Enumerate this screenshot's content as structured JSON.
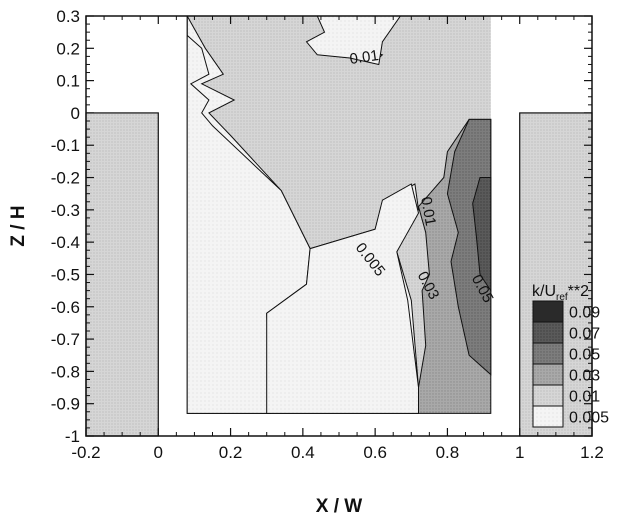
{
  "chart_data": {
    "type": "contour",
    "xlabel": "X / W",
    "ylabel": "Z / H",
    "xlim": [
      -0.2,
      1.2
    ],
    "ylim": [
      -1,
      0.3
    ],
    "x_ticks": [
      "-0.2",
      "0",
      "0.2",
      "0.4",
      "0.6",
      "0.8",
      "1",
      "1.2"
    ],
    "x_tick_values": [
      -0.2,
      0,
      0.2,
      0.4,
      0.6,
      0.8,
      1,
      1.2
    ],
    "y_ticks": [
      "0.3",
      "0.2",
      "0.1",
      "0",
      "-0.1",
      "-0.2",
      "-0.3",
      "-0.4",
      "-0.5",
      "-0.6",
      "-0.7",
      "-0.8",
      "-0.9",
      "-1"
    ],
    "y_tick_values": [
      0.3,
      0.2,
      0.1,
      0,
      -0.1,
      -0.2,
      -0.3,
      -0.4,
      -0.5,
      -0.6,
      -0.7,
      -0.8,
      -0.9,
      -1
    ],
    "legend": {
      "title_main": "k/U",
      "title_sub": "ref",
      "title_tail": "**2",
      "placement": "lower-right",
      "levels": [
        {
          "label": "0.09",
          "color": "#2a2a2a"
        },
        {
          "label": "0.07",
          "color": "#555555"
        },
        {
          "label": "0.05",
          "color": "#7d7d7d"
        },
        {
          "label": "0.03",
          "color": "#a8a8a8"
        },
        {
          "label": "0.01",
          "color": "#d2d2d2"
        },
        {
          "label": "0.005",
          "color": "#ececec"
        }
      ]
    },
    "contour_labels": [
      {
        "text": "0.01",
        "x": 0.57,
        "y": 0.17,
        "angle": -8
      },
      {
        "text": "0.01",
        "x": 0.745,
        "y": -0.305,
        "angle": 80
      },
      {
        "text": "0.005",
        "x": 0.585,
        "y": -0.455,
        "angle": 52
      },
      {
        "text": "0.03",
        "x": 0.745,
        "y": -0.535,
        "angle": 62
      },
      {
        "text": "0.05",
        "x": 0.895,
        "y": -0.545,
        "angle": 62
      }
    ],
    "walls": [
      {
        "x0": -0.2,
        "x1": 0.0,
        "y0": -1.0,
        "y1": 0.0,
        "level": "0.01"
      },
      {
        "x0": 1.0,
        "x1": 1.2,
        "y0": -1.0,
        "y1": 0.0,
        "level": "0.01"
      }
    ],
    "regions": [
      {
        "level": "0.01",
        "points": [
          [
            0.08,
            -0.93
          ],
          [
            0.92,
            -0.93
          ],
          [
            0.92,
            0.3
          ],
          [
            0.08,
            0.3
          ]
        ]
      },
      {
        "level": "0.005",
        "points": [
          [
            0.08,
            0.3
          ],
          [
            0.08,
            -0.93
          ],
          [
            0.3,
            -0.93
          ],
          [
            0.31,
            -0.6
          ],
          [
            0.42,
            -0.53
          ],
          [
            0.42,
            -0.42
          ],
          [
            0.6,
            -0.36
          ],
          [
            0.62,
            -0.28
          ],
          [
            0.71,
            -0.22
          ],
          [
            0.72,
            -0.3
          ],
          [
            0.66,
            -0.43
          ],
          [
            0.7,
            -0.58
          ],
          [
            0.72,
            -0.85
          ],
          [
            0.72,
            -0.93
          ],
          [
            0.3,
            -0.93
          ],
          [
            0.31,
            -0.6
          ],
          [
            0.55,
            -0.93
          ],
          [
            0.69,
            -0.93
          ],
          [
            0.69,
            -0.6
          ],
          [
            0.72,
            -0.85
          ],
          [
            0.69,
            -0.93
          ],
          [
            0.55,
            -0.93
          ],
          [
            0.42,
            -0.53
          ],
          [
            0.42,
            -0.42
          ],
          [
            0.34,
            -0.24
          ],
          [
            0.2,
            -0.07
          ],
          [
            0.14,
            0.0
          ],
          [
            0.21,
            0.04
          ],
          [
            0.12,
            0.09
          ],
          [
            0.18,
            0.12
          ],
          [
            0.13,
            0.2
          ],
          [
            0.08,
            0.3
          ]
        ]
      },
      {
        "level": "0.005",
        "points": [
          [
            0.08,
            0.3
          ],
          [
            0.08,
            -0.93
          ],
          [
            0.31,
            -0.93
          ],
          [
            0.3,
            -0.62
          ],
          [
            0.41,
            -0.53
          ],
          [
            0.42,
            -0.42
          ],
          [
            0.34,
            -0.24
          ],
          [
            0.15,
            -0.04
          ],
          [
            0.12,
            0.0
          ],
          [
            0.14,
            0.04
          ],
          [
            0.09,
            0.09
          ],
          [
            0.14,
            0.12
          ],
          [
            0.12,
            0.2
          ],
          [
            0.08,
            0.24
          ]
        ]
      },
      {
        "level": "0.005",
        "points": [
          [
            0.3,
            -0.93
          ],
          [
            0.72,
            -0.93
          ],
          [
            0.72,
            -0.85
          ],
          [
            0.69,
            -0.58
          ],
          [
            0.66,
            -0.43
          ],
          [
            0.72,
            -0.31
          ],
          [
            0.7,
            -0.22
          ],
          [
            0.62,
            -0.27
          ],
          [
            0.6,
            -0.36
          ],
          [
            0.42,
            -0.42
          ],
          [
            0.41,
            -0.53
          ],
          [
            0.3,
            -0.62
          ]
        ]
      },
      {
        "level": "0.005",
        "points": [
          [
            0.47,
            0.3
          ],
          [
            0.55,
            0.3
          ],
          [
            0.54,
            0.28
          ],
          [
            0.56,
            0.2
          ],
          [
            0.62,
            0.18
          ],
          [
            0.6,
            0.16
          ],
          [
            0.45,
            0.19
          ],
          [
            0.42,
            0.21
          ],
          [
            0.49,
            0.24
          ],
          [
            0.47,
            0.3
          ]
        ]
      },
      {
        "level": "0.005",
        "points": [
          [
            0.44,
            0.3
          ],
          [
            0.46,
            0.25
          ],
          [
            0.41,
            0.22
          ],
          [
            0.44,
            0.18
          ],
          [
            0.53,
            0.17
          ],
          [
            0.61,
            0.15
          ],
          [
            0.62,
            0.22
          ],
          [
            0.67,
            0.3
          ]
        ]
      },
      {
        "level": "0.03",
        "points": [
          [
            0.72,
            -0.93
          ],
          [
            0.92,
            -0.93
          ],
          [
            0.92,
            -0.02
          ],
          [
            0.86,
            -0.02
          ],
          [
            0.8,
            -0.12
          ],
          [
            0.79,
            -0.2
          ],
          [
            0.72,
            -0.29
          ],
          [
            0.74,
            -0.37
          ],
          [
            0.75,
            -0.5
          ],
          [
            0.73,
            -0.55
          ],
          [
            0.74,
            -0.72
          ],
          [
            0.72,
            -0.85
          ]
        ]
      },
      {
        "level": "0.05",
        "points": [
          [
            0.92,
            -0.02
          ],
          [
            0.92,
            -0.81
          ],
          [
            0.86,
            -0.75
          ],
          [
            0.83,
            -0.6
          ],
          [
            0.81,
            -0.46
          ],
          [
            0.83,
            -0.37
          ],
          [
            0.8,
            -0.25
          ],
          [
            0.82,
            -0.12
          ],
          [
            0.86,
            -0.02
          ]
        ]
      },
      {
        "level": "0.07",
        "points": [
          [
            0.92,
            -0.2
          ],
          [
            0.92,
            -0.55
          ],
          [
            0.89,
            -0.5
          ],
          [
            0.88,
            -0.38
          ],
          [
            0.87,
            -0.28
          ],
          [
            0.89,
            -0.2
          ]
        ]
      }
    ]
  }
}
